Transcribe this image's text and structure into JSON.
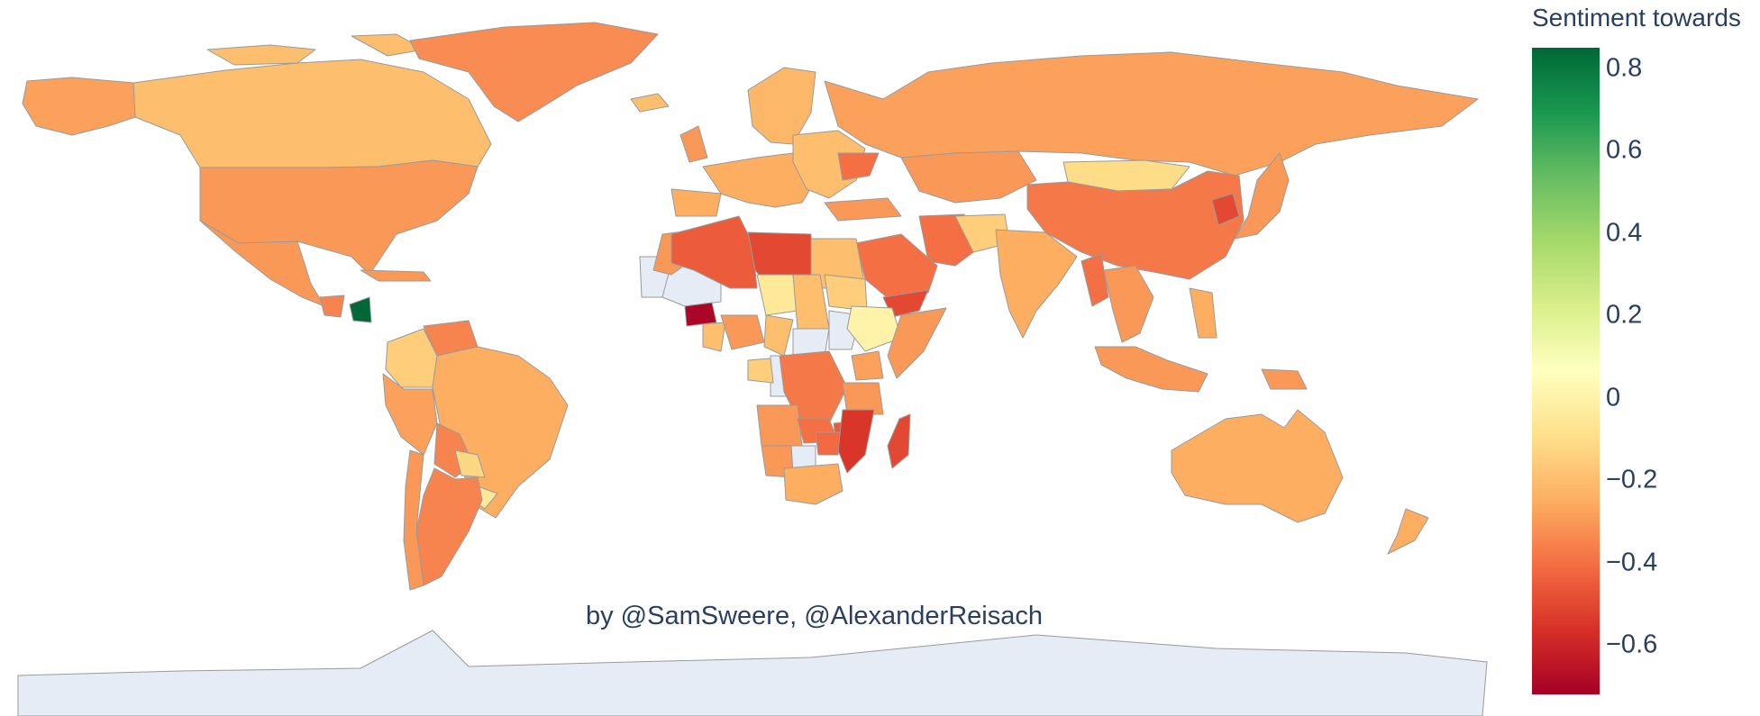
{
  "colorbar": {
    "title": "Sentiment towards",
    "min": -0.72,
    "max": 0.85,
    "colors": [
      "#a50026",
      "#d73027",
      "#f46d43",
      "#fdae61",
      "#fee08b",
      "#ffffbf",
      "#d9ef8b",
      "#a6d96a",
      "#66bd63",
      "#1a9850",
      "#006837"
    ],
    "ticks": [
      {
        "value": 0.8,
        "label": "0.8"
      },
      {
        "value": 0.6,
        "label": "0.6"
      },
      {
        "value": 0.4,
        "label": "0.4"
      },
      {
        "value": 0.2,
        "label": "0.2"
      },
      {
        "value": 0,
        "label": "0"
      },
      {
        "value": -0.2,
        "label": "−0.2"
      },
      {
        "value": -0.4,
        "label": "−0.4"
      },
      {
        "value": -0.6,
        "label": "−0.6"
      }
    ]
  },
  "credit": "by @SamSweere, @AlexanderReisach",
  "map": {
    "no_data_color": "#e5ecf6",
    "regions": [
      {
        "name": "Canada",
        "value": -0.2
      },
      {
        "name": "Alaska",
        "value": -0.28
      },
      {
        "name": "USA",
        "value": -0.3
      },
      {
        "name": "Mexico",
        "value": -0.3
      },
      {
        "name": "Guatemala",
        "value": -0.35
      },
      {
        "name": "Nicaragua",
        "value": 0.85
      },
      {
        "name": "Cuba",
        "value": -0.3
      },
      {
        "name": "Greenland",
        "value": -0.33
      },
      {
        "name": "Colombia",
        "value": -0.15
      },
      {
        "name": "Venezuela",
        "value": -0.35
      },
      {
        "name": "Brazil",
        "value": -0.25
      },
      {
        "name": "Peru",
        "value": -0.28
      },
      {
        "name": "Bolivia",
        "value": -0.35
      },
      {
        "name": "Paraguay",
        "value": -0.12
      },
      {
        "name": "Uruguay",
        "value": -0.05
      },
      {
        "name": "Argentina",
        "value": -0.35
      },
      {
        "name": "Chile",
        "value": -0.3
      },
      {
        "name": "Iceland",
        "value": -0.2
      },
      {
        "name": "UK",
        "value": -0.3
      },
      {
        "name": "Western Europe",
        "value": -0.25
      },
      {
        "name": "Spain",
        "value": -0.25
      },
      {
        "name": "Scandinavia",
        "value": -0.22
      },
      {
        "name": "Eastern Europe",
        "value": -0.2
      },
      {
        "name": "Ukraine",
        "value": -0.4
      },
      {
        "name": "Turkey",
        "value": -0.3
      },
      {
        "name": "Russia",
        "value": -0.28
      },
      {
        "name": "Kazakhstan",
        "value": -0.3
      },
      {
        "name": "Mongolia",
        "value": -0.1
      },
      {
        "name": "China",
        "value": -0.38
      },
      {
        "name": "North Korea",
        "value": -0.5
      },
      {
        "name": "Japan",
        "value": -0.3
      },
      {
        "name": "Iran",
        "value": -0.4
      },
      {
        "name": "Saudi Arabia",
        "value": -0.4
      },
      {
        "name": "Yemen",
        "value": -0.5
      },
      {
        "name": "Afghanistan",
        "value": -0.15
      },
      {
        "name": "India",
        "value": -0.25
      },
      {
        "name": "Myanmar",
        "value": -0.4
      },
      {
        "name": "Southeast Asia",
        "value": -0.3
      },
      {
        "name": "Philippines",
        "value": -0.25
      },
      {
        "name": "Indonesia",
        "value": -0.3
      },
      {
        "name": "Papua New Guinea",
        "value": -0.3
      },
      {
        "name": "Australia",
        "value": -0.25
      },
      {
        "name": "New Zealand",
        "value": -0.25
      },
      {
        "name": "Morocco",
        "value": -0.3
      },
      {
        "name": "Algeria",
        "value": -0.45
      },
      {
        "name": "Libya",
        "value": -0.5
      },
      {
        "name": "Egypt",
        "value": -0.2
      },
      {
        "name": "Niger",
        "value": -0.05
      },
      {
        "name": "Chad",
        "value": -0.2
      },
      {
        "name": "Sudan",
        "value": -0.15
      },
      {
        "name": "Ethiopia",
        "value": 0.0
      },
      {
        "name": "Somalia",
        "value": -0.3
      },
      {
        "name": "Burkina Faso",
        "value": -0.7
      },
      {
        "name": "Ghana",
        "value": -0.2
      },
      {
        "name": "Nigeria",
        "value": -0.3
      },
      {
        "name": "Cameroon",
        "value": -0.2
      },
      {
        "name": "Gabon",
        "value": -0.15
      },
      {
        "name": "DR Congo",
        "value": -0.38
      },
      {
        "name": "Kenya",
        "value": -0.28
      },
      {
        "name": "Tanzania",
        "value": -0.3
      },
      {
        "name": "Angola",
        "value": -0.3
      },
      {
        "name": "Zambia",
        "value": -0.4
      },
      {
        "name": "Malawi",
        "value": -0.45
      },
      {
        "name": "Mozambique",
        "value": -0.55
      },
      {
        "name": "Madagascar",
        "value": -0.5
      },
      {
        "name": "Zimbabwe",
        "value": -0.42
      },
      {
        "name": "Namibia",
        "value": -0.3
      },
      {
        "name": "South Africa",
        "value": -0.25
      }
    ],
    "no_data_regions": [
      "Mauritania",
      "Mali",
      "Central African Republic",
      "South Sudan",
      "Republic of Congo",
      "Botswana",
      "Antarctica"
    ]
  }
}
